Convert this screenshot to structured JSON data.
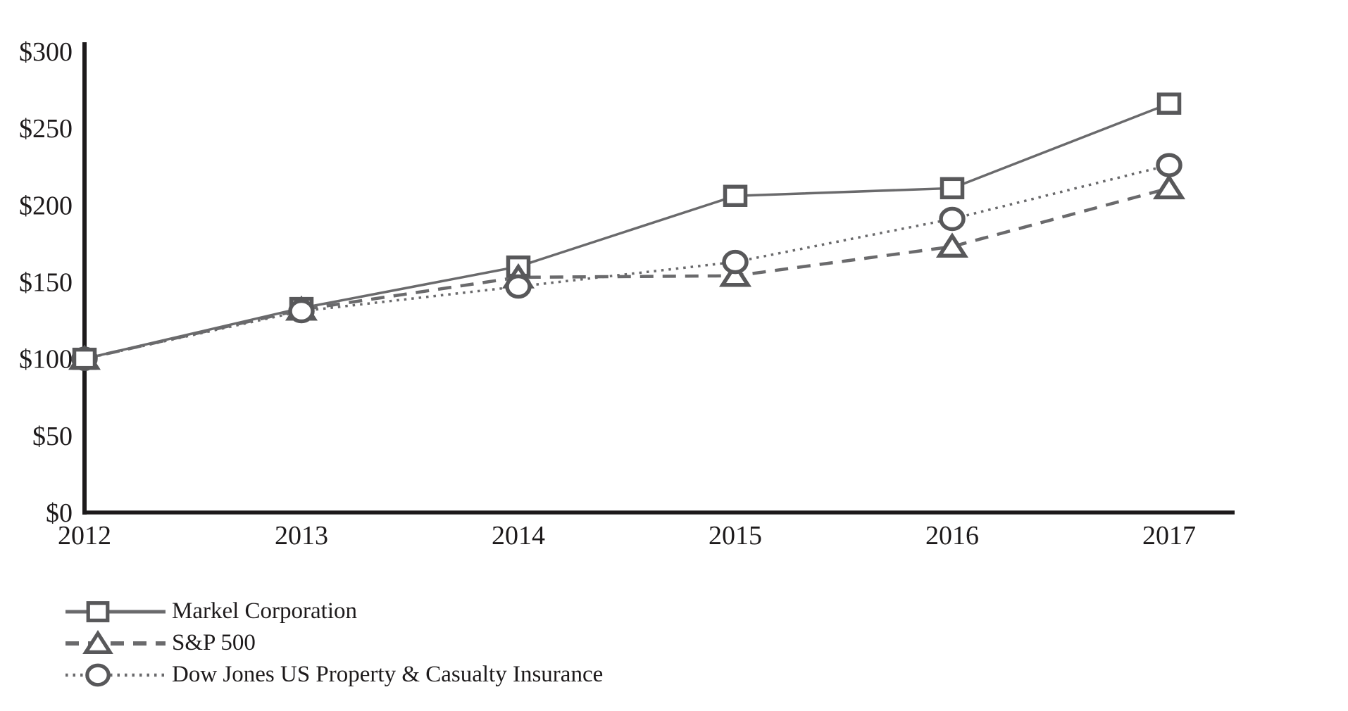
{
  "chart_data": {
    "type": "line",
    "x_labels": [
      "2012",
      "2013",
      "2014",
      "2015",
      "2016",
      "2017"
    ],
    "y_tick_labels": [
      "$300",
      "$250",
      "$200",
      "$150",
      "$100",
      "$50",
      "$0"
    ],
    "y_tick_values": [
      300,
      250,
      200,
      150,
      100,
      50,
      0
    ],
    "ylim": [
      0,
      300
    ],
    "grid": false,
    "legend_position": "bottom-left",
    "series": [
      {
        "name": "Markel Corporation",
        "line_style": "solid",
        "marker": "square",
        "values": [
          100,
          133,
          160,
          206,
          211,
          266
        ]
      },
      {
        "name": "S&P 500",
        "line_style": "dashed",
        "marker": "triangle",
        "values": [
          100,
          132,
          153,
          154,
          173,
          211
        ]
      },
      {
        "name": "Dow Jones US Property & Casualty Insurance",
        "line_style": "dotted",
        "marker": "circle",
        "values": [
          100,
          131,
          147,
          163,
          191,
          226
        ]
      }
    ],
    "colors": {
      "axis": "#1d1a1b",
      "tick_text": "#1d1a1b",
      "legend_text": "#1d1a1b",
      "series_line": "#6a6a6c",
      "marker_stroke": "#58585a",
      "marker_fill": "#ffffff",
      "background": "#ffffff"
    }
  }
}
